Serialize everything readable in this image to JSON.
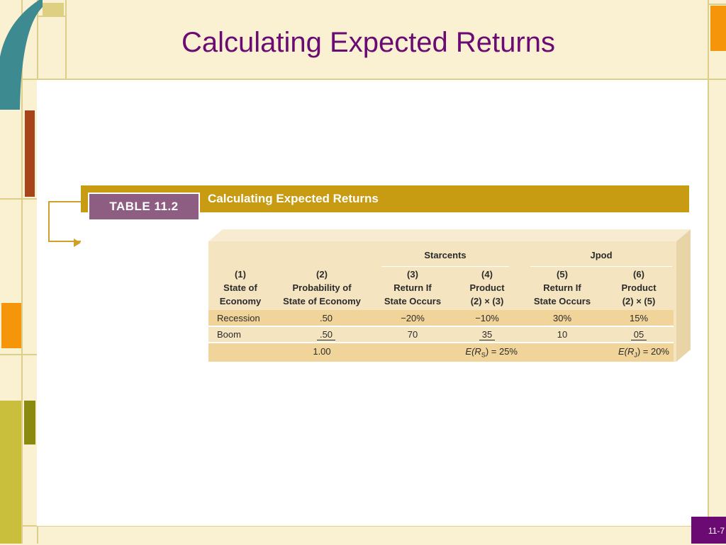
{
  "slide": {
    "title": "Calculating Expected Returns",
    "number": "11-7"
  },
  "table": {
    "badge": "TABLE 11.2",
    "title": "Calculating Expected Returns",
    "groups": {
      "starcents": "Starcents",
      "jpod": "Jpod"
    },
    "columns": [
      {
        "num": "(1)",
        "line1": "State of",
        "line2": "Economy"
      },
      {
        "num": "(2)",
        "line1": "Probability of",
        "line2": "State of Economy"
      },
      {
        "num": "(3)",
        "line1": "Return If",
        "line2": "State Occurs"
      },
      {
        "num": "(4)",
        "line1": "Product",
        "line2": "(2) × (3)"
      },
      {
        "num": "(5)",
        "line1": "Return If",
        "line2": "State Occurs"
      },
      {
        "num": "(6)",
        "line1": "Product",
        "line2": "(2) × (5)"
      }
    ],
    "rows": [
      {
        "state": "Recession",
        "prob": ".50",
        "r_s": "−20%",
        "prod_s": "−10%",
        "r_j": "30%",
        "prod_j": "15%"
      },
      {
        "state": "Boom",
        "prob": ".50",
        "r_s": "70",
        "prod_s": "35",
        "r_j": "10",
        "prod_j": "05"
      }
    ],
    "totals": {
      "prob": "1.00",
      "er_s": "E(R",
      "er_s_sub": "S",
      "er_s_val": ") = 25%",
      "er_j": "E(R",
      "er_j_sub": "J",
      "er_j_val": ") = 20%"
    }
  },
  "colors": {
    "title": "#6b0a73",
    "band": "#c79b12",
    "badge": "#8e5d82",
    "table_bg": "#f5e4c0",
    "row_highlight": "#f0d49a"
  }
}
